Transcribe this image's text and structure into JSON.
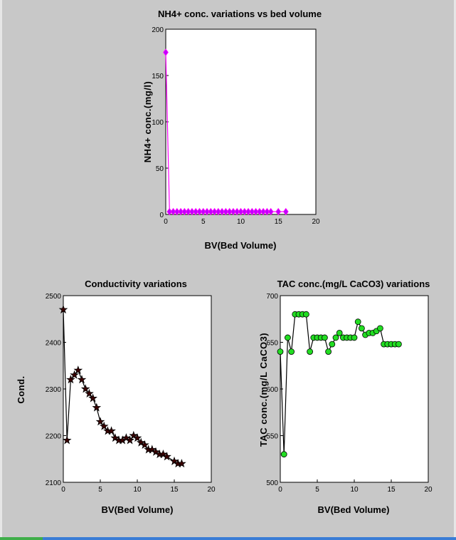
{
  "chart_data": [
    {
      "id": "nh4",
      "type": "line",
      "title": "NH4+ conc. variations vs bed volume",
      "xlabel": "BV(Bed Volume)",
      "ylabel": "NH4+ conc.(mg/l)",
      "xlim": [
        0,
        20
      ],
      "ylim": [
        0,
        200
      ],
      "xticks": [
        0,
        5,
        10,
        15,
        20
      ],
      "yticks": [
        0,
        50,
        100,
        150,
        200
      ],
      "grid": false,
      "line_color": "#ff00ff",
      "marker": "diamond",
      "marker_color": "#c000ff",
      "series": [
        {
          "x": [
            0,
            0.5,
            1,
            1.5,
            2,
            2.5,
            3,
            3.5,
            4,
            4.5,
            5,
            5.5,
            6,
            6.5,
            7,
            7.5,
            8,
            8.5,
            9,
            9.5,
            10,
            10.5,
            11,
            11.5,
            12,
            12.5,
            13,
            13.5,
            14,
            15,
            16
          ],
          "y": [
            175,
            3,
            3,
            3,
            3,
            3,
            3,
            3,
            3,
            3,
            3,
            3,
            3,
            3,
            3,
            3,
            3,
            3,
            3,
            3,
            3,
            3,
            3,
            3,
            3,
            3,
            3,
            3,
            3,
            3,
            3
          ]
        }
      ]
    },
    {
      "id": "cond",
      "type": "line",
      "title": "Conductivity variations",
      "xlabel": "BV(Bed Volume)",
      "ylabel": "Cond.",
      "xlim": [
        0,
        20
      ],
      "ylim": [
        2100,
        2500
      ],
      "xticks": [
        0,
        5,
        10,
        15,
        20
      ],
      "yticks": [
        2100,
        2200,
        2300,
        2400,
        2500
      ],
      "grid": false,
      "line_color": "#000000",
      "marker": "star",
      "marker_color": "#3a0000",
      "series": [
        {
          "x": [
            0,
            0.5,
            1,
            1.5,
            2,
            2.5,
            3,
            3.5,
            4,
            4.5,
            5,
            5.5,
            6,
            6.5,
            7,
            7.5,
            8,
            8.5,
            9,
            9.5,
            10,
            10.5,
            11,
            11.5,
            12,
            12.5,
            13,
            13.5,
            14,
            15,
            15.5,
            16
          ],
          "y": [
            2470,
            2190,
            2320,
            2330,
            2340,
            2320,
            2300,
            2290,
            2280,
            2260,
            2230,
            2220,
            2210,
            2210,
            2195,
            2190,
            2190,
            2195,
            2190,
            2200,
            2195,
            2185,
            2180,
            2170,
            2170,
            2165,
            2160,
            2160,
            2155,
            2145,
            2140,
            2140
          ]
        }
      ]
    },
    {
      "id": "tac",
      "type": "line",
      "title": "TAC conc.(mg/L CaCO3) variations",
      "xlabel": "BV(Bed Volume)",
      "ylabel": "TAC conc.(mg/L CaCO3)",
      "xlim": [
        0,
        20
      ],
      "ylim": [
        500,
        700
      ],
      "xticks": [
        0,
        5,
        10,
        15,
        20
      ],
      "yticks": [
        500,
        550,
        600,
        650,
        700
      ],
      "grid": false,
      "line_color": "#000000",
      "marker": "circle",
      "marker_color": "#22dd22",
      "series": [
        {
          "x": [
            0,
            0.5,
            1,
            1.5,
            2,
            2.5,
            3,
            3.5,
            4,
            4.5,
            5,
            5.5,
            6,
            6.5,
            7,
            7.5,
            8,
            8.5,
            9,
            9.5,
            10,
            10.5,
            11,
            11.5,
            12,
            12.5,
            13,
            13.5,
            14,
            14.5,
            15,
            15.5,
            16
          ],
          "y": [
            640,
            530,
            655,
            640,
            680,
            680,
            680,
            680,
            640,
            655,
            655,
            655,
            655,
            640,
            648,
            655,
            660,
            655,
            655,
            655,
            655,
            672,
            665,
            658,
            660,
            660,
            662,
            665,
            648,
            648,
            648,
            648,
            648
          ]
        }
      ]
    }
  ]
}
